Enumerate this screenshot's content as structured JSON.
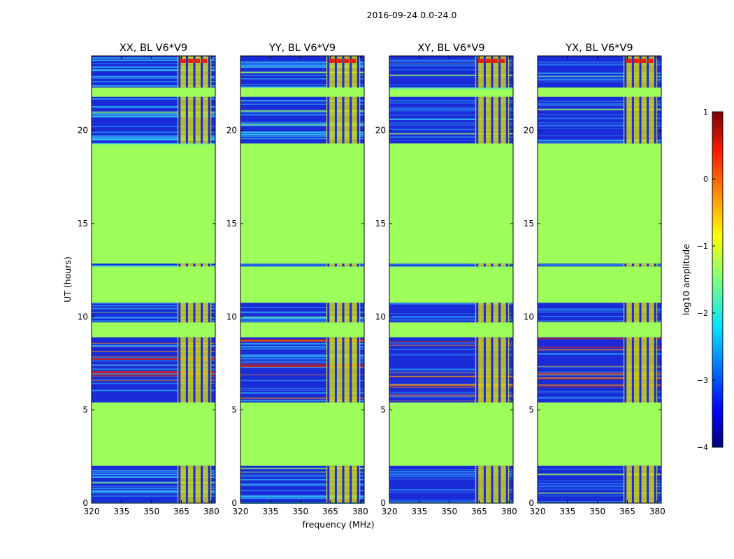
{
  "suptitle": "2016-09-24 0.0-24.0",
  "colors": {
    "background": "#9dff5a",
    "blue": "#1a2bd8",
    "cyan": "#33ccff",
    "red": "#e82000",
    "orange": "#ff8c00",
    "yellow": "#e6e600"
  },
  "chart_data": {
    "type": "heatmap",
    "title": "2016-09-24 0.0-24.0",
    "xlabel": "frequency (MHz)",
    "ylabel": "UT (hours)",
    "xlim": [
      320,
      382
    ],
    "ylim": [
      0,
      24
    ],
    "xticks": [
      320,
      335,
      350,
      365,
      380
    ],
    "yticks": [
      0,
      5,
      10,
      15,
      20
    ],
    "panels": [
      {
        "title": "XX, BL V6*V9",
        "bright": 1.0
      },
      {
        "title": "YY, BL V6*V9",
        "bright": 1.0
      },
      {
        "title": "XY, BL V6*V9",
        "bright": 0.6
      },
      {
        "title": "YX, BL V6*V9",
        "bright": 0.6
      }
    ],
    "flagged_ut_ranges": [
      [
        2.0,
        5.4
      ],
      [
        10.8,
        12.7
      ],
      [
        12.85,
        19.2
      ],
      [
        21.8,
        22.3
      ]
    ],
    "data_ut_ranges": [
      [
        0,
        2.0
      ],
      [
        5.4,
        8.9
      ],
      [
        9.7,
        10.75
      ],
      [
        12.7,
        12.85
      ],
      [
        19.3,
        21.8
      ],
      [
        22.3,
        24.0
      ]
    ],
    "rfi_band_mhz": [
      363,
      380
    ],
    "colorbar": {
      "label": "log10 amplitude",
      "range": [
        -4,
        1
      ],
      "ticks": [
        1,
        0,
        -1,
        -2,
        -3,
        -4
      ]
    }
  }
}
